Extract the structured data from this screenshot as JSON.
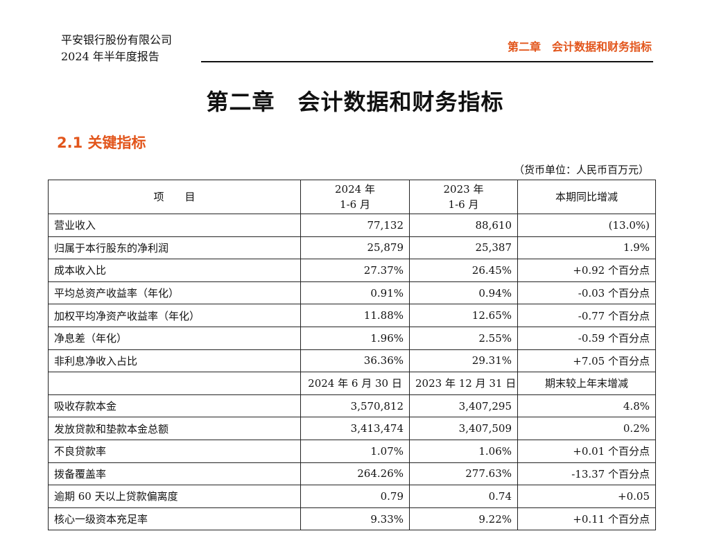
{
  "header": {
    "company": "平安银行股份有限公司",
    "report": "2024 年半年度报告",
    "chapter_tag": "第二章　会计数据和财务指标"
  },
  "chapter_title": "第二章　会计数据和财务指标",
  "section_title": "2.1  关键指标",
  "unit": "（货币单位：人民币百万元）",
  "table": {
    "head": {
      "item": "项　　目",
      "col1_l1": "2024 年",
      "col1_l2": "1-6 月",
      "col2_l1": "2023 年",
      "col2_l2": "1-6 月",
      "col3": "本期同比增减"
    },
    "period_rows": [
      {
        "label": "营业收入",
        "v2024": "77,132",
        "v2023": "88,610",
        "change": "(13.0%)"
      },
      {
        "label": "归属于本行股东的净利润",
        "v2024": "25,879",
        "v2023": "25,387",
        "change": "1.9%"
      },
      {
        "label": "成本收入比",
        "v2024": "27.37%",
        "v2023": "26.45%",
        "change": "+0.92 个百分点"
      },
      {
        "label": "平均总资产收益率（年化）",
        "v2024": "0.91%",
        "v2023": "0.94%",
        "change": "-0.03 个百分点"
      },
      {
        "label": "加权平均净资产收益率（年化）",
        "v2024": "11.88%",
        "v2023": "12.65%",
        "change": "-0.77 个百分点"
      },
      {
        "label": "净息差（年化）",
        "v2024": "1.96%",
        "v2023": "2.55%",
        "change": "-0.59 个百分点"
      },
      {
        "label": "非利息净收入占比",
        "v2024": "36.36%",
        "v2023": "29.31%",
        "change": "+7.05 个百分点"
      }
    ],
    "subhead": {
      "col1": "2024 年 6 月 30 日",
      "col2": "2023 年 12 月 31 日",
      "col3": "期末较上年末增减"
    },
    "balance_rows": [
      {
        "label": "吸收存款本金",
        "v2024": "3,570,812",
        "v2023": "3,407,295",
        "change": "4.8%"
      },
      {
        "label": "发放贷款和垫款本金总额",
        "v2024": "3,413,474",
        "v2023": "3,407,509",
        "change": "0.2%"
      },
      {
        "label": "不良贷款率",
        "v2024": "1.07%",
        "v2023": "1.06%",
        "change": "+0.01 个百分点"
      },
      {
        "label": "拨备覆盖率",
        "v2024": "264.26%",
        "v2023": "277.63%",
        "change": "-13.37 个百分点"
      },
      {
        "label": "逾期 60 天以上贷款偏离度",
        "v2024": "0.79",
        "v2023": "0.74",
        "change": "+0.05"
      },
      {
        "label": "核心一级资本充足率",
        "v2024": "9.33%",
        "v2023": "9.22%",
        "change": "+0.11 个百分点"
      }
    ]
  }
}
